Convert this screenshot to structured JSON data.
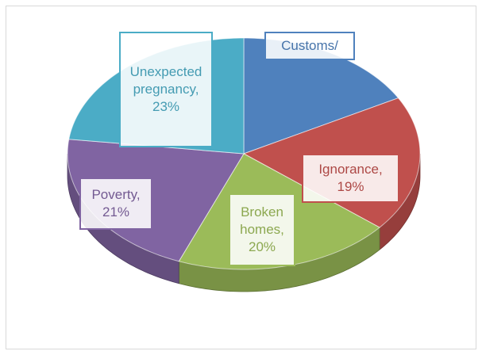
{
  "chart_data": {
    "type": "pie3d",
    "values": [
      17,
      19,
      20,
      21,
      23
    ],
    "value_labels": [
      "Customs/",
      "Ignorance, 19%",
      "Broken homes, 20%",
      "Poverty, 21%",
      "Unexpected pregnancy, 23%"
    ],
    "colors": [
      "#4f81bd",
      "#c0504d",
      "#9bbb59",
      "#8064a2",
      "#4bacc6"
    ]
  }
}
